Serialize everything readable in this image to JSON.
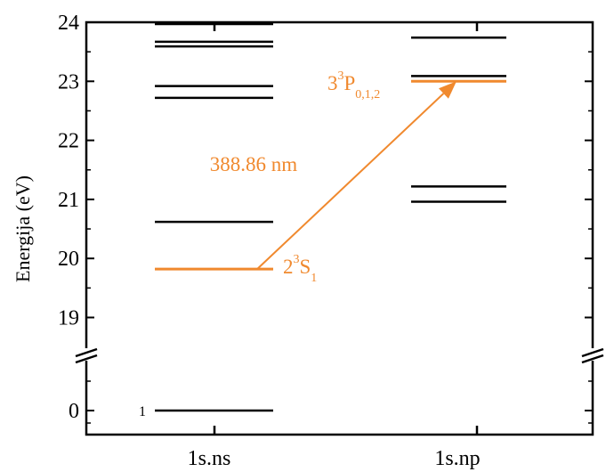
{
  "yaxis": {
    "label": "Energija (eV)",
    "ticks": [
      {
        "value": 24,
        "label": "24"
      },
      {
        "value": 23,
        "label": "23"
      },
      {
        "value": 22,
        "label": "22"
      },
      {
        "value": 21,
        "label": "21"
      },
      {
        "value": 20,
        "label": "20"
      },
      {
        "value": 19,
        "label": "19"
      },
      {
        "value": 0,
        "label": "0"
      }
    ],
    "break_between": [
      0,
      19
    ]
  },
  "columns": [
    {
      "label": "1s.ns"
    },
    {
      "label": "1s.np"
    }
  ],
  "levels_ns": [
    0,
    19.82,
    20.62,
    22.72,
    22.92,
    23.59,
    23.67,
    23.97
  ],
  "levels_np": [
    20.96,
    21.22,
    23.0,
    23.09,
    23.74
  ],
  "ground_label": "1",
  "highlight": {
    "color": "#f0892e",
    "lower_level": 19.82,
    "upper_level": 23.0,
    "lower_term": {
      "base": "2",
      "mult": "3",
      "letter": "S",
      "sub": "1"
    },
    "upper_term": {
      "base": "3",
      "mult": "3",
      "letter": "P",
      "sub": "0,1,2"
    },
    "transition_label": "388.86 nm"
  }
}
